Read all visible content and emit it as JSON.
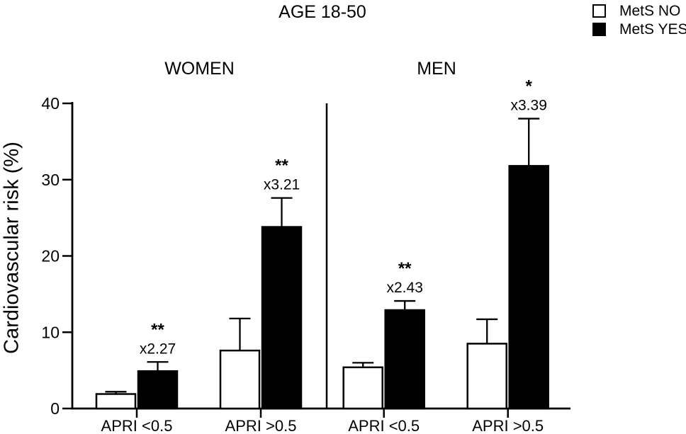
{
  "chart_data": {
    "type": "bar",
    "title": "AGE 18-50",
    "ylabel": "Cardiovascular risk (%)",
    "ylim": [
      0,
      40
    ],
    "yticks": [
      0,
      10,
      20,
      30,
      40
    ],
    "ink_color": "#000000",
    "background_color": "#ffffff",
    "legend_position": "top-right",
    "grid": false,
    "legend": [
      {
        "label": "MetS NO",
        "fill": "#ffffff"
      },
      {
        "label": "MetS YES",
        "fill": "#000000"
      }
    ],
    "panels": [
      {
        "title": "WOMEN",
        "categories": [
          "APRI <0.5",
          "APRI >0.5"
        ],
        "series": [
          {
            "name": "MetS NO",
            "values": [
              1.9,
              7.6
            ],
            "errors": [
              0.3,
              4.2
            ]
          },
          {
            "name": "MetS YES",
            "values": [
              4.9,
              23.8
            ],
            "errors": [
              1.2,
              3.8
            ]
          }
        ],
        "annotations": [
          {
            "category": "APRI <0.5",
            "stars": "**",
            "label": "x2.27"
          },
          {
            "category": "APRI >0.5",
            "stars": "**",
            "label": "x3.21"
          }
        ]
      },
      {
        "title": "MEN",
        "categories": [
          "APRI <0.5",
          "APRI >0.5"
        ],
        "series": [
          {
            "name": "MetS NO",
            "values": [
              5.4,
              8.5
            ],
            "errors": [
              0.6,
              3.2
            ]
          },
          {
            "name": "MetS YES",
            "values": [
              12.9,
              31.8
            ],
            "errors": [
              1.2,
              6.2
            ]
          }
        ],
        "annotations": [
          {
            "category": "APRI <0.5",
            "stars": "**",
            "label": "x2.43"
          },
          {
            "category": "APRI >0.5",
            "stars": "*",
            "label": "x3.39"
          }
        ]
      }
    ]
  }
}
